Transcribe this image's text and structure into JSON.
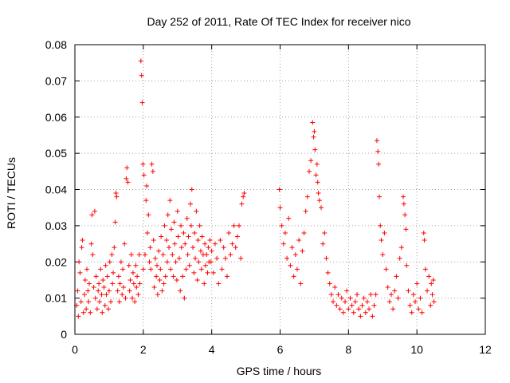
{
  "chart_data": {
    "type": "scatter",
    "title": "Day 252 of 2011, Rate Of TEC Index for receiver nico",
    "xlabel": "GPS time / hours",
    "ylabel": "ROTI / TECUs",
    "xlim": [
      0,
      12
    ],
    "ylim": [
      0,
      0.08
    ],
    "xticks": [
      0,
      2,
      4,
      6,
      8,
      10,
      12
    ],
    "yticks": [
      0,
      0.01,
      0.02,
      0.03,
      0.04,
      0.05,
      0.06,
      0.07,
      0.08
    ],
    "xtick_labels": [
      "0",
      "2",
      "4",
      "6",
      "8",
      "10",
      "12"
    ],
    "ytick_labels": [
      "0",
      "0.01",
      "0.02",
      "0.03",
      "0.04",
      "0.05",
      "0.06",
      "0.07",
      "0.08"
    ],
    "grid": true,
    "marker": "+",
    "series": [
      {
        "name": "ROTI",
        "color": "#ff0000",
        "points": [
          [
            0.05,
            0.008
          ],
          [
            0.08,
            0.012
          ],
          [
            0.1,
            0.005
          ],
          [
            0.12,
            0.02
          ],
          [
            0.15,
            0.017
          ],
          [
            0.18,
            0.009
          ],
          [
            0.2,
            0.024
          ],
          [
            0.22,
            0.026
          ],
          [
            0.25,
            0.006
          ],
          [
            0.28,
            0.011
          ],
          [
            0.3,
            0.015
          ],
          [
            0.33,
            0.007
          ],
          [
            0.35,
            0.018
          ],
          [
            0.38,
            0.012
          ],
          [
            0.4,
            0.009
          ],
          [
            0.42,
            0.014
          ],
          [
            0.45,
            0.006
          ],
          [
            0.48,
            0.025
          ],
          [
            0.5,
            0.033
          ],
          [
            0.52,
            0.022
          ],
          [
            0.55,
            0.013
          ],
          [
            0.58,
            0.034
          ],
          [
            0.6,
            0.01
          ],
          [
            0.62,
            0.016
          ],
          [
            0.65,
            0.007
          ],
          [
            0.68,
            0.012
          ],
          [
            0.7,
            0.014
          ],
          [
            0.72,
            0.009
          ],
          [
            0.75,
            0.018
          ],
          [
            0.78,
            0.011
          ],
          [
            0.8,
            0.006
          ],
          [
            0.82,
            0.015
          ],
          [
            0.85,
            0.013
          ],
          [
            0.88,
            0.008
          ],
          [
            0.9,
            0.019
          ],
          [
            0.92,
            0.011
          ],
          [
            0.95,
            0.016
          ],
          [
            0.98,
            0.007
          ],
          [
            1.0,
            0.012
          ],
          [
            1.02,
            0.02
          ],
          [
            1.05,
            0.009
          ],
          [
            1.08,
            0.022
          ],
          [
            1.1,
            0.014
          ],
          [
            1.12,
            0.017
          ],
          [
            1.15,
            0.024
          ],
          [
            1.18,
            0.031
          ],
          [
            1.2,
            0.039
          ],
          [
            1.22,
            0.038
          ],
          [
            1.25,
            0.012
          ],
          [
            1.28,
            0.016
          ],
          [
            1.3,
            0.009
          ],
          [
            1.32,
            0.014
          ],
          [
            1.35,
            0.02
          ],
          [
            1.38,
            0.011
          ],
          [
            1.4,
            0.018
          ],
          [
            1.42,
            0.013
          ],
          [
            1.45,
            0.025
          ],
          [
            1.48,
            0.01
          ],
          [
            1.5,
            0.043
          ],
          [
            1.52,
            0.046
          ],
          [
            1.55,
            0.042
          ],
          [
            1.58,
            0.019
          ],
          [
            1.6,
            0.012
          ],
          [
            1.62,
            0.015
          ],
          [
            1.65,
            0.022
          ],
          [
            1.68,
            0.01
          ],
          [
            1.7,
            0.017
          ],
          [
            1.72,
            0.014
          ],
          [
            1.75,
            0.009
          ],
          [
            1.78,
            0.019
          ],
          [
            1.8,
            0.013
          ],
          [
            1.82,
            0.016
          ],
          [
            1.85,
            0.011
          ],
          [
            1.88,
            0.022
          ],
          [
            1.9,
            0.014
          ],
          [
            1.93,
            0.0755
          ],
          [
            1.95,
            0.0715
          ],
          [
            1.97,
            0.064
          ],
          [
            1.99,
            0.047
          ],
          [
            2.0,
            0.018
          ],
          [
            2.02,
            0.044
          ],
          [
            2.05,
            0.022
          ],
          [
            2.08,
            0.037
          ],
          [
            2.1,
            0.041
          ],
          [
            2.12,
            0.028
          ],
          [
            2.15,
            0.033
          ],
          [
            2.18,
            0.02
          ],
          [
            2.2,
            0.024
          ],
          [
            2.22,
            0.018
          ],
          [
            2.25,
            0.047
          ],
          [
            2.28,
            0.045
          ],
          [
            2.3,
            0.026
          ],
          [
            2.32,
            0.013
          ],
          [
            2.35,
            0.021
          ],
          [
            2.38,
            0.016
          ],
          [
            2.4,
            0.019
          ],
          [
            2.42,
            0.011
          ],
          [
            2.45,
            0.023
          ],
          [
            2.48,
            0.015
          ],
          [
            2.5,
            0.018
          ],
          [
            2.52,
            0.027
          ],
          [
            2.55,
            0.012
          ],
          [
            2.58,
            0.022
          ],
          [
            2.6,
            0.014
          ],
          [
            2.62,
            0.03
          ],
          [
            2.65,
            0.016
          ],
          [
            2.68,
            0.026
          ],
          [
            2.7,
            0.02
          ],
          [
            2.72,
            0.033
          ],
          [
            2.75,
            0.024
          ],
          [
            2.78,
            0.037
          ],
          [
            2.8,
            0.018
          ],
          [
            2.82,
            0.029
          ],
          [
            2.85,
            0.022
          ],
          [
            2.88,
            0.016
          ],
          [
            2.9,
            0.031
          ],
          [
            2.92,
            0.025
          ],
          [
            2.95,
            0.02
          ],
          [
            2.98,
            0.015
          ],
          [
            3.0,
            0.034
          ],
          [
            3.02,
            0.027
          ],
          [
            3.05,
            0.021
          ],
          [
            3.08,
            0.012
          ],
          [
            3.1,
            0.03
          ],
          [
            3.12,
            0.024
          ],
          [
            3.15,
            0.016
          ],
          [
            3.18,
            0.028
          ],
          [
            3.2,
            0.01
          ],
          [
            3.22,
            0.025
          ],
          [
            3.25,
            0.018
          ],
          [
            3.28,
            0.032
          ],
          [
            3.3,
            0.022
          ],
          [
            3.32,
            0.027
          ],
          [
            3.35,
            0.019
          ],
          [
            3.38,
            0.036
          ],
          [
            3.4,
            0.03
          ],
          [
            3.42,
            0.04
          ],
          [
            3.45,
            0.024
          ],
          [
            3.48,
            0.017
          ],
          [
            3.5,
            0.028
          ],
          [
            3.52,
            0.021
          ],
          [
            3.55,
            0.034
          ],
          [
            3.58,
            0.015
          ],
          [
            3.6,
            0.026
          ],
          [
            3.62,
            0.02
          ],
          [
            3.65,
            0.03
          ],
          [
            3.68,
            0.023
          ],
          [
            3.7,
            0.018
          ],
          [
            3.72,
            0.027
          ],
          [
            3.75,
            0.022
          ],
          [
            3.78,
            0.014
          ],
          [
            3.8,
            0.025
          ],
          [
            3.82,
            0.019
          ],
          [
            3.85,
            0.022
          ],
          [
            3.88,
            0.017
          ],
          [
            3.9,
            0.024
          ],
          [
            3.92,
            0.02
          ],
          [
            3.95,
            0.026
          ],
          [
            3.98,
            0.02
          ],
          [
            4.0,
            0.023
          ],
          [
            4.05,
            0.017
          ],
          [
            4.1,
            0.025
          ],
          [
            4.15,
            0.021
          ],
          [
            4.2,
            0.014
          ],
          [
            4.25,
            0.026
          ],
          [
            4.3,
            0.018
          ],
          [
            4.35,
            0.024
          ],
          [
            4.4,
            0.021
          ],
          [
            4.45,
            0.016
          ],
          [
            4.5,
            0.028
          ],
          [
            4.55,
            0.022
          ],
          [
            4.6,
            0.025
          ],
          [
            4.65,
            0.03
          ],
          [
            4.7,
            0.024
          ],
          [
            4.75,
            0.027
          ],
          [
            4.8,
            0.03
          ],
          [
            4.85,
            0.021
          ],
          [
            4.88,
            0.036
          ],
          [
            4.92,
            0.038
          ],
          [
            4.95,
            0.039
          ],
          [
            5.98,
            0.04
          ],
          [
            6.0,
            0.035
          ],
          [
            6.05,
            0.03
          ],
          [
            6.1,
            0.025
          ],
          [
            6.15,
            0.028
          ],
          [
            6.2,
            0.021
          ],
          [
            6.25,
            0.032
          ],
          [
            6.3,
            0.019
          ],
          [
            6.35,
            0.024
          ],
          [
            6.4,
            0.016
          ],
          [
            6.45,
            0.022
          ],
          [
            6.5,
            0.018
          ],
          [
            6.55,
            0.026
          ],
          [
            6.6,
            0.014
          ],
          [
            6.65,
            0.023
          ],
          [
            6.7,
            0.028
          ],
          [
            6.75,
            0.034
          ],
          [
            6.8,
            0.038
          ],
          [
            6.85,
            0.045
          ],
          [
            6.9,
            0.048
          ],
          [
            6.95,
            0.0585
          ],
          [
            6.98,
            0.0545
          ],
          [
            7.0,
            0.056
          ],
          [
            7.02,
            0.051
          ],
          [
            7.05,
            0.044
          ],
          [
            7.08,
            0.047
          ],
          [
            7.1,
            0.042
          ],
          [
            7.12,
            0.039
          ],
          [
            7.15,
            0.037
          ],
          [
            7.2,
            0.035
          ],
          [
            7.25,
            0.025
          ],
          [
            7.3,
            0.028
          ],
          [
            7.35,
            0.021
          ],
          [
            7.4,
            0.017
          ],
          [
            7.45,
            0.014
          ],
          [
            7.5,
            0.011
          ],
          [
            7.55,
            0.009
          ],
          [
            7.6,
            0.013
          ],
          [
            7.65,
            0.008
          ],
          [
            7.7,
            0.011
          ],
          [
            7.75,
            0.007
          ],
          [
            7.8,
            0.01
          ],
          [
            7.85,
            0.006
          ],
          [
            7.9,
            0.009
          ],
          [
            7.95,
            0.012
          ],
          [
            8.0,
            0.007
          ],
          [
            8.05,
            0.01
          ],
          [
            8.1,
            0.008
          ],
          [
            8.15,
            0.006
          ],
          [
            8.2,
            0.009
          ],
          [
            8.25,
            0.011
          ],
          [
            8.3,
            0.007
          ],
          [
            8.35,
            0.005
          ],
          [
            8.4,
            0.008
          ],
          [
            8.45,
            0.01
          ],
          [
            8.5,
            0.006
          ],
          [
            8.55,
            0.009
          ],
          [
            8.6,
            0.007
          ],
          [
            8.65,
            0.011
          ],
          [
            8.7,
            0.005
          ],
          [
            8.75,
            0.008
          ],
          [
            8.8,
            0.011
          ],
          [
            8.83,
            0.0535
          ],
          [
            8.86,
            0.0505
          ],
          [
            8.88,
            0.047
          ],
          [
            8.9,
            0.038
          ],
          [
            8.93,
            0.03
          ],
          [
            8.96,
            0.026
          ],
          [
            9.0,
            0.022
          ],
          [
            9.05,
            0.028
          ],
          [
            9.1,
            0.018
          ],
          [
            9.15,
            0.013
          ],
          [
            9.2,
            0.009
          ],
          [
            9.25,
            0.011
          ],
          [
            9.3,
            0.007
          ],
          [
            9.35,
            0.012
          ],
          [
            9.4,
            0.016
          ],
          [
            9.45,
            0.01
          ],
          [
            9.5,
            0.021
          ],
          [
            9.55,
            0.024
          ],
          [
            9.6,
            0.038
          ],
          [
            9.62,
            0.036
          ],
          [
            9.65,
            0.033
          ],
          [
            9.68,
            0.029
          ],
          [
            9.7,
            0.019
          ],
          [
            9.75,
            0.012
          ],
          [
            9.8,
            0.008
          ],
          [
            9.85,
            0.006
          ],
          [
            9.9,
            0.011
          ],
          [
            9.95,
            0.009
          ],
          [
            10.0,
            0.014
          ],
          [
            10.05,
            0.007
          ],
          [
            10.1,
            0.01
          ],
          [
            10.15,
            0.006
          ],
          [
            10.2,
            0.028
          ],
          [
            10.22,
            0.026
          ],
          [
            10.25,
            0.018
          ],
          [
            10.3,
            0.012
          ],
          [
            10.35,
            0.016
          ],
          [
            10.4,
            0.008
          ],
          [
            10.42,
            0.014
          ],
          [
            10.45,
            0.011
          ],
          [
            10.48,
            0.015
          ],
          [
            10.5,
            0.009
          ]
        ]
      }
    ]
  }
}
